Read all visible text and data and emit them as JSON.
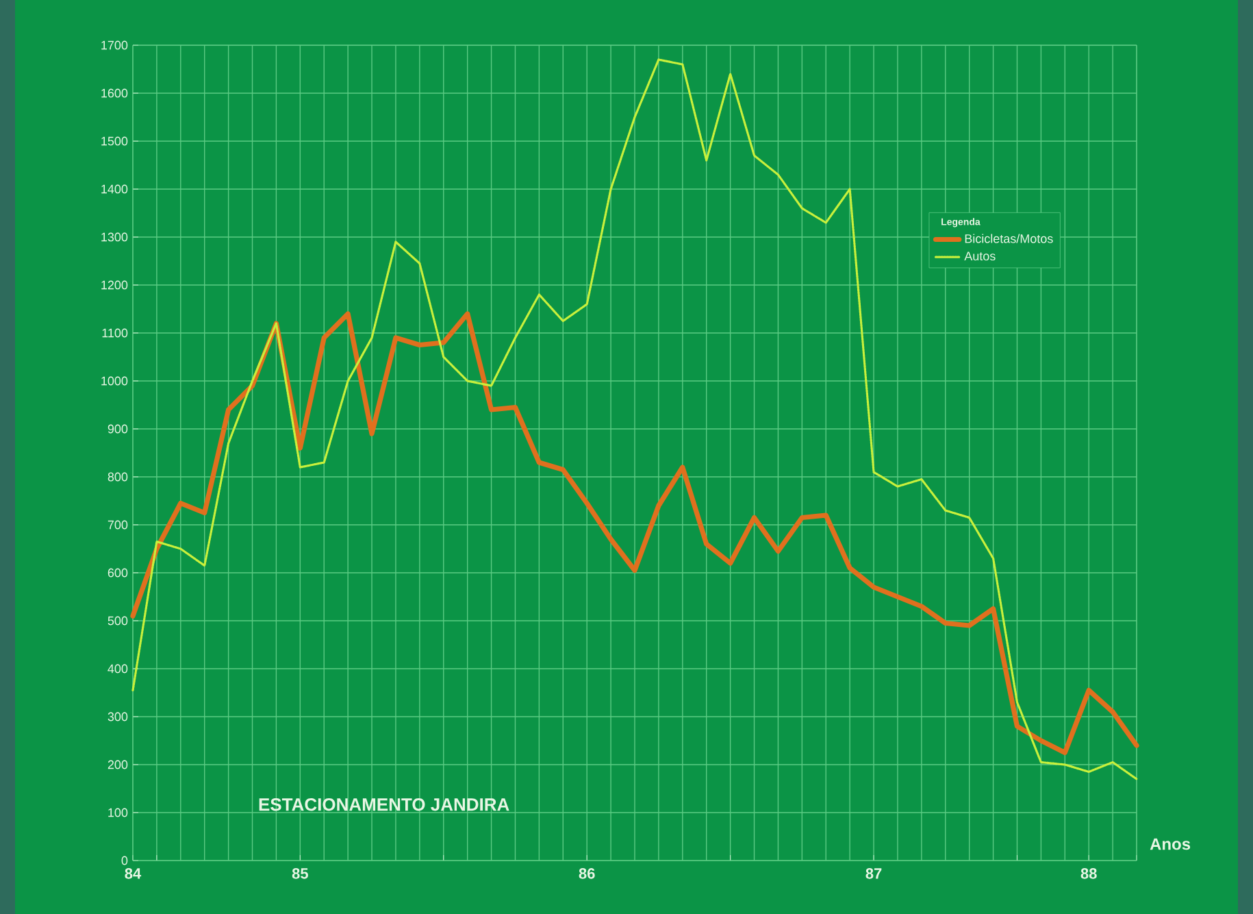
{
  "chart_data": {
    "type": "line",
    "title": "ESTACIONAMENTO JANDIRA",
    "xlabel": "Anos",
    "legend_title": "Legenda",
    "x": [
      "1984-12",
      "1985-01",
      "1985-02",
      "1985-03",
      "1985-04",
      "1985-05",
      "1985-06",
      "1985-07",
      "1985-08",
      "1985-09",
      "1985-10",
      "1985-11",
      "1985-12",
      "1986-01",
      "1986-02",
      "1986-03",
      "1986-04",
      "1986-05",
      "1986-06",
      "1986-07",
      "1986-08",
      "1986-09",
      "1986-10",
      "1986-11",
      "1986-12",
      "1987-01",
      "1987-02",
      "1987-03",
      "1987-04",
      "1987-05",
      "1987-06",
      "1987-07",
      "1987-08",
      "1987-09",
      "1987-10",
      "1987-11",
      "1987-12",
      "1988-01",
      "1988-02",
      "1988-03",
      "1988-04",
      "1988-05",
      "1988-06"
    ],
    "series": [
      {
        "name": "Bicicletas/Motos",
        "color": "#e0701e",
        "line_style": "solid",
        "values": [
          510,
          650,
          745,
          725,
          940,
          990,
          1120,
          860,
          1090,
          1140,
          890,
          1090,
          1075,
          1080,
          1140,
          940,
          945,
          830,
          815,
          745,
          670,
          605,
          740,
          820,
          660,
          620,
          715,
          645,
          715,
          720,
          610,
          570,
          550,
          530,
          495,
          490,
          525,
          280,
          250,
          225,
          355,
          310,
          240
        ]
      },
      {
        "name": "Autos",
        "color": "#c8f03c",
        "line_style": "dotted",
        "values": [
          355,
          665,
          650,
          615,
          870,
          1000,
          1120,
          820,
          830,
          1000,
          1090,
          1290,
          1245,
          1050,
          1000,
          990,
          1090,
          1180,
          1125,
          1160,
          1400,
          1550,
          1670,
          1660,
          1460,
          1640,
          1470,
          1430,
          1360,
          1330,
          1400,
          810,
          780,
          795,
          730,
          715,
          630,
          330,
          205,
          200,
          185,
          205,
          170
        ]
      }
    ],
    "xlim": [
      "1984-12",
      "1988-06"
    ],
    "ylim": [
      0,
      1700
    ],
    "xticks": [
      {
        "value": "1984-12",
        "label": "84"
      },
      {
        "value": "1985-01",
        "label": null
      },
      {
        "value": "1985-07",
        "label": "85"
      },
      {
        "value": "1986-01",
        "label": null
      },
      {
        "value": "1986-07",
        "label": "86"
      },
      {
        "value": "1987-01",
        "label": null
      },
      {
        "value": "1987-07",
        "label": "87"
      },
      {
        "value": "1988-01",
        "label": null
      },
      {
        "value": "1988-04",
        "label": "88"
      },
      {
        "value": "1988-06",
        "label": null
      }
    ],
    "yticks": [
      0,
      100,
      200,
      300,
      400,
      500,
      600,
      700,
      800,
      900,
      1000,
      1100,
      1200,
      1300,
      1400,
      1500,
      1600,
      1700
    ],
    "grid": true,
    "legend": "right"
  }
}
